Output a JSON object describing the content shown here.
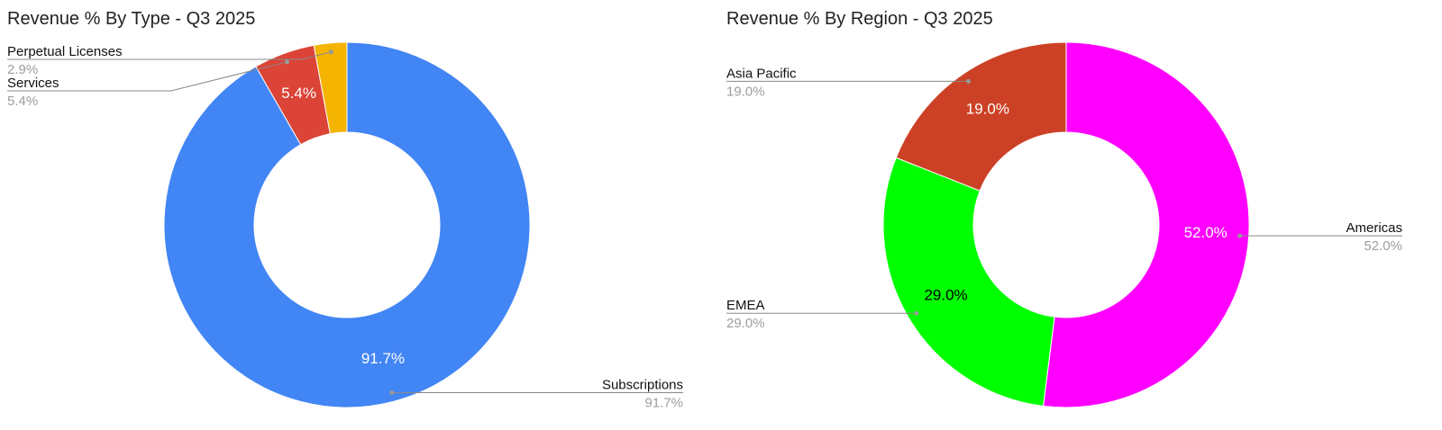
{
  "chart_data": [
    {
      "type": "donut",
      "title": "Revenue % By Type - Q3 2025",
      "categories": [
        "Subscriptions",
        "Services",
        "Perpetual Licenses"
      ],
      "values": [
        91.7,
        5.4,
        2.9
      ],
      "value_labels": [
        "91.7%",
        "5.4%",
        "2.9%"
      ],
      "colors": [
        "#4285f4",
        "#db4437",
        "#f4b400"
      ]
    },
    {
      "type": "donut",
      "title": "Revenue % By Region - Q3 2025",
      "categories": [
        "Americas",
        "EMEA",
        "Asia Pacific"
      ],
      "values": [
        52.0,
        29.0,
        19.0
      ],
      "value_labels": [
        "52.0%",
        "29.0%",
        "19.0%"
      ],
      "colors": [
        "#ff00ff",
        "#00ff00",
        "#cc4125"
      ]
    }
  ]
}
